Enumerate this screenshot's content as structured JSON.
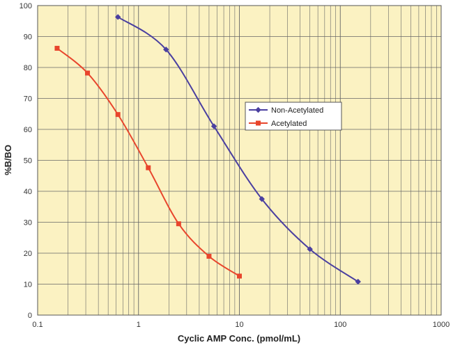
{
  "chart_data": {
    "type": "line",
    "title": "",
    "xlabel": "Cyclic AMP Conc. (pmol/mL)",
    "ylabel": "%B/BO",
    "x_scale": "log",
    "xlim": [
      0.1,
      1000
    ],
    "ylim": [
      0,
      100
    ],
    "x_ticks": [
      "0.1",
      "1",
      "10",
      "100",
      "1000"
    ],
    "y_ticks": [
      "0",
      "10",
      "20",
      "30",
      "40",
      "50",
      "60",
      "70",
      "80",
      "90",
      "100"
    ],
    "grid": true,
    "legend_position": "right-center",
    "background_color": "#fbf2c2",
    "series": [
      {
        "name": "Non-Acetylated",
        "color": "#4a3fa0",
        "marker": "diamond",
        "x": [
          0.625,
          1.875,
          5.6,
          16.7,
          50,
          150
        ],
        "y": [
          96.3,
          85.8,
          61.0,
          37.5,
          21.3,
          10.8
        ]
      },
      {
        "name": "Acetylated",
        "color": "#e8452c",
        "marker": "square",
        "x": [
          0.156,
          0.312,
          0.625,
          1.25,
          2.5,
          5,
          10
        ],
        "y": [
          86.2,
          78.2,
          64.8,
          47.6,
          29.5,
          19.0,
          12.6
        ]
      }
    ]
  }
}
